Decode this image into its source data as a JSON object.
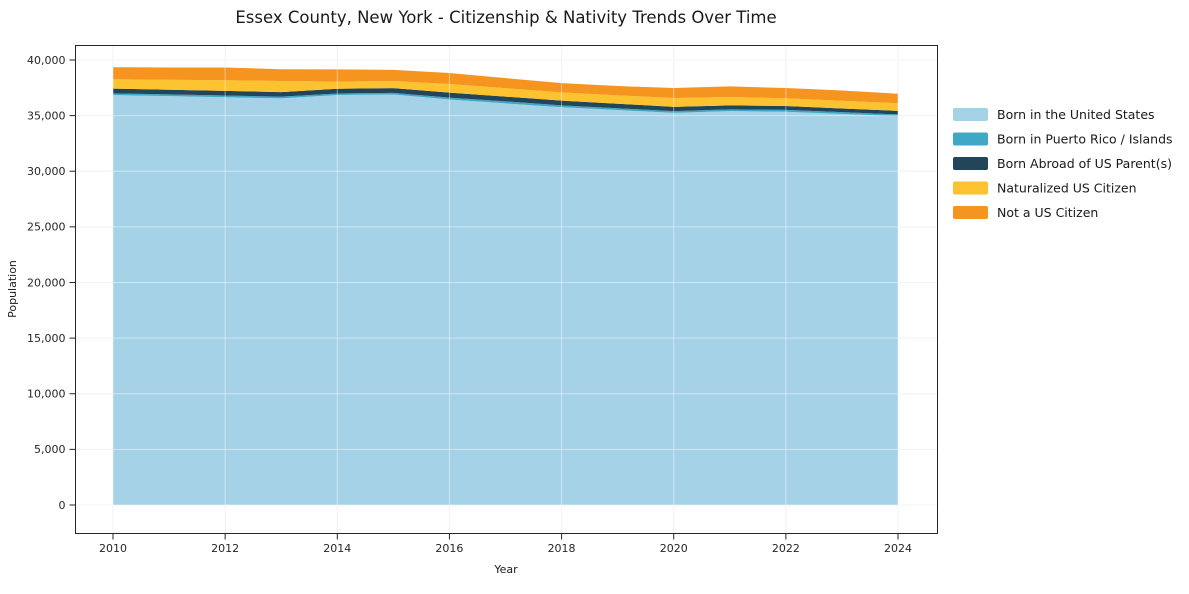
{
  "chart_data": {
    "type": "area",
    "stacked": true,
    "title": "Essex County, New York - Citizenship & Nativity Trends Over Time",
    "xlabel": "Year",
    "ylabel": "Population",
    "xlim": [
      2010,
      2024
    ],
    "ylim": [
      0,
      40000
    ],
    "grid": true,
    "legend_position": "right",
    "background": "#ffffff",
    "x": [
      2010,
      2011,
      2012,
      2013,
      2014,
      2015,
      2016,
      2017,
      2018,
      2019,
      2020,
      2021,
      2022,
      2023,
      2024
    ],
    "series": [
      {
        "name": "Born in the United States",
        "color": "#a6d2e7",
        "values": [
          36850,
          36750,
          36650,
          36550,
          36850,
          36900,
          36450,
          36100,
          35750,
          35500,
          35250,
          35400,
          35350,
          35150,
          34950
        ]
      },
      {
        "name": "Born in Puerto Rico / Islands",
        "color": "#40a8c4",
        "values": [
          150,
          155,
          160,
          155,
          140,
          150,
          170,
          180,
          170,
          160,
          150,
          160,
          170,
          165,
          160
        ]
      },
      {
        "name": "Born Abroad of US Parent(s)",
        "color": "#22455a",
        "values": [
          430,
          425,
          420,
          410,
          420,
          420,
          450,
          430,
          430,
          410,
          390,
          360,
          340,
          330,
          320
        ]
      },
      {
        "name": "Naturalized US Citizen",
        "color": "#fcc22f",
        "values": [
          840,
          900,
          950,
          1000,
          650,
          640,
          770,
          760,
          740,
          750,
          800,
          760,
          700,
          690,
          680
        ]
      },
      {
        "name": "Not a US Citizen",
        "color": "#f5941f",
        "values": [
          1080,
          1100,
          1150,
          1050,
          1100,
          1000,
          990,
          900,
          830,
          840,
          890,
          950,
          920,
          920,
          860
        ]
      }
    ],
    "xticks": {
      "values": [
        2010,
        2012,
        2014,
        2016,
        2018,
        2020,
        2022,
        2024
      ],
      "labels": [
        "2010",
        "2012",
        "2014",
        "2016",
        "2018",
        "2020",
        "2022",
        "2024"
      ]
    },
    "yticks": {
      "values": [
        0,
        5000,
        10000,
        15000,
        20000,
        25000,
        30000,
        35000,
        40000
      ],
      "labels": [
        "0",
        "5,000",
        "10,000",
        "15,000",
        "20,000",
        "25,000",
        "30,000",
        "35,000",
        "40,000"
      ]
    }
  }
}
